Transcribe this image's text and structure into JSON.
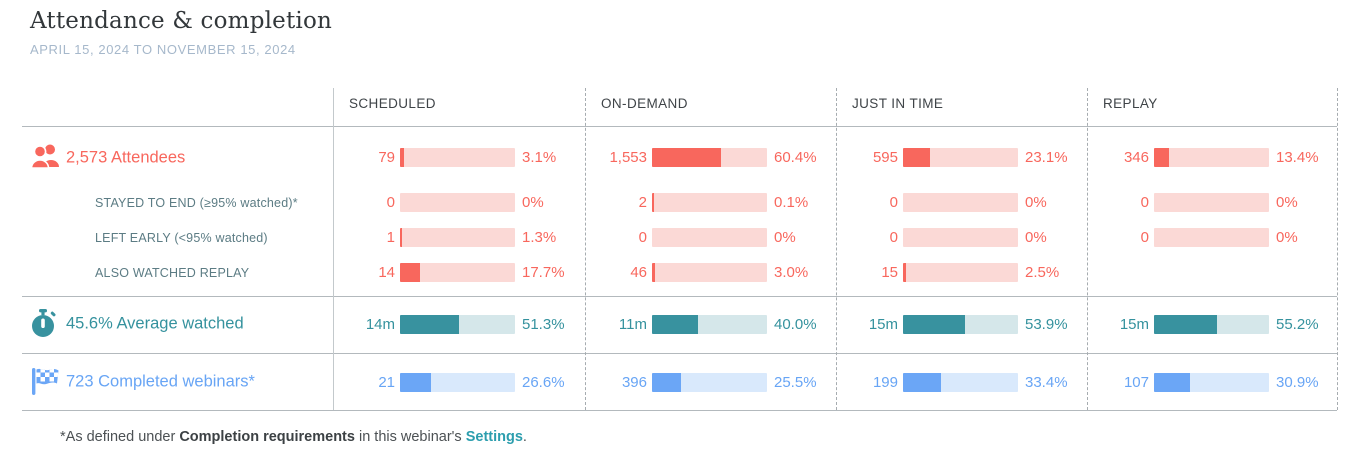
{
  "page": {
    "title": "Attendance & completion",
    "date_range": "APRIL 15, 2024 TO NOVEMBER 15, 2024"
  },
  "columns": {
    "c0": "SCHEDULED",
    "c1": "ON-DEMAND",
    "c2": "JUST IN TIME",
    "c3": "REPLAY"
  },
  "rows": {
    "attendees": {
      "icon": "people-icon",
      "label": "2,573 Attendees",
      "cells": {
        "c0": {
          "count": "79",
          "pct": 3.1,
          "pct_label": "3.1%"
        },
        "c1": {
          "count": "1,553",
          "pct": 60.4,
          "pct_label": "60.4%"
        },
        "c2": {
          "count": "595",
          "pct": 23.1,
          "pct_label": "23.1%"
        },
        "c3": {
          "count": "346",
          "pct": 13.4,
          "pct_label": "13.4%"
        }
      }
    },
    "stayed": {
      "label": "STAYED TO END (≥95% watched)*",
      "cells": {
        "c0": {
          "count": "0",
          "pct": 0,
          "pct_label": "0%"
        },
        "c1": {
          "count": "2",
          "pct": 0.1,
          "pct_label": "0.1%"
        },
        "c2": {
          "count": "0",
          "pct": 0,
          "pct_label": "0%"
        },
        "c3": {
          "count": "0",
          "pct": 0,
          "pct_label": "0%"
        }
      }
    },
    "left_early": {
      "label": "LEFT EARLY (<95% watched)",
      "cells": {
        "c0": {
          "count": "1",
          "pct": 1.3,
          "pct_label": "1.3%"
        },
        "c1": {
          "count": "0",
          "pct": 0,
          "pct_label": "0%"
        },
        "c2": {
          "count": "0",
          "pct": 0,
          "pct_label": "0%"
        },
        "c3": {
          "count": "0",
          "pct": 0,
          "pct_label": "0%"
        }
      }
    },
    "also_replay": {
      "label": "ALSO WATCHED REPLAY",
      "cells": {
        "c0": {
          "count": "14",
          "pct": 17.7,
          "pct_label": "17.7%"
        },
        "c1": {
          "count": "46",
          "pct": 3.0,
          "pct_label": "3.0%"
        },
        "c2": {
          "count": "15",
          "pct": 2.5,
          "pct_label": "2.5%"
        }
      }
    },
    "avg_watched": {
      "icon": "stopwatch-icon",
      "label": "45.6% Average watched",
      "cells": {
        "c0": {
          "count": "14m",
          "pct": 51.3,
          "pct_label": "51.3%"
        },
        "c1": {
          "count": "11m",
          "pct": 40.0,
          "pct_label": "40.0%"
        },
        "c2": {
          "count": "15m",
          "pct": 53.9,
          "pct_label": "53.9%"
        },
        "c3": {
          "count": "15m",
          "pct": 55.2,
          "pct_label": "55.2%"
        }
      }
    },
    "completed": {
      "icon": "checkered-flag-icon",
      "label": "723 Completed webinars*",
      "cells": {
        "c0": {
          "count": "21",
          "pct": 26.6,
          "pct_label": "26.6%"
        },
        "c1": {
          "count": "396",
          "pct": 25.5,
          "pct_label": "25.5%"
        },
        "c2": {
          "count": "199",
          "pct": 33.4,
          "pct_label": "33.4%"
        },
        "c3": {
          "count": "107",
          "pct": 30.9,
          "pct_label": "30.9%"
        }
      }
    }
  },
  "footnote": {
    "prefix": "*As defined under ",
    "bold": "Completion requirements",
    "middle": " in this webinar's ",
    "link": "Settings",
    "suffix": "."
  },
  "colors": {
    "coral": "#f8675d",
    "coral_light": "#fbd9d6",
    "teal": "#38929f",
    "teal_light": "#d5e7ea",
    "blue": "#6ba6f6",
    "blue_light": "#d9e9fc",
    "sublabel": "#5c7c84",
    "link": "#2c9eae",
    "date": "#a6b8cb"
  },
  "chart_data": {
    "type": "bar",
    "title": "Attendance & completion",
    "subtitle": "APRIL 15, 2024 TO NOVEMBER 15, 2024",
    "categories": [
      "SCHEDULED",
      "ON-DEMAND",
      "JUST IN TIME",
      "REPLAY"
    ],
    "series": [
      {
        "name": "Attendees",
        "total": 2573,
        "counts": [
          79,
          1553,
          595,
          346
        ],
        "percent": [
          3.1,
          60.4,
          23.1,
          13.4
        ]
      },
      {
        "name": "Stayed to end (≥95% watched)",
        "counts": [
          0,
          2,
          0,
          0
        ],
        "percent": [
          0,
          0.1,
          0,
          0
        ]
      },
      {
        "name": "Left early (<95% watched)",
        "counts": [
          1,
          0,
          0,
          0
        ],
        "percent": [
          1.3,
          0,
          0,
          0
        ]
      },
      {
        "name": "Also watched replay",
        "counts": [
          14,
          46,
          15,
          null
        ],
        "percent": [
          17.7,
          3.0,
          2.5,
          null
        ]
      },
      {
        "name": "Average watched",
        "overall_percent": 45.6,
        "durations": [
          "14m",
          "11m",
          "15m",
          "15m"
        ],
        "percent": [
          51.3,
          40.0,
          53.9,
          55.2
        ]
      },
      {
        "name": "Completed webinars",
        "total": 723,
        "counts": [
          21,
          396,
          199,
          107
        ],
        "percent": [
          26.6,
          25.5,
          33.4,
          30.9
        ]
      }
    ],
    "xlim": [
      0,
      100
    ],
    "legend_position": "none",
    "grid": false
  }
}
